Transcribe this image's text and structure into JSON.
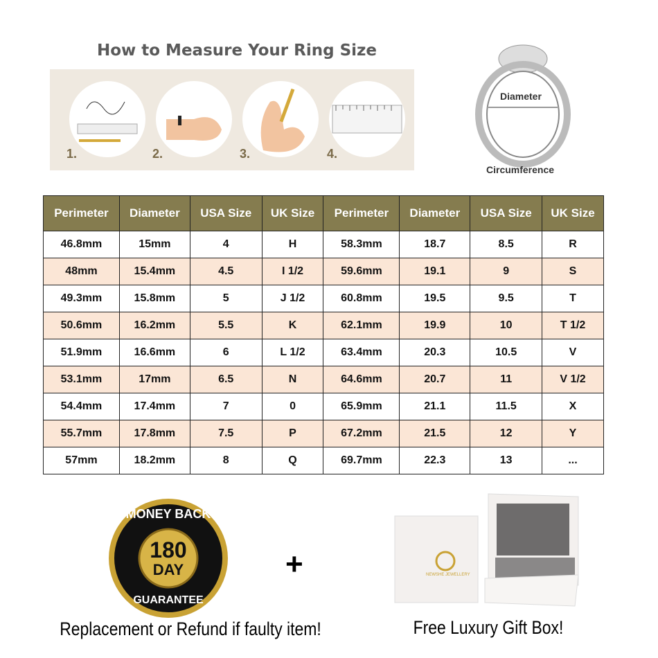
{
  "measure": {
    "title": "How to Measure Your Ring Size",
    "steps": [
      "1.",
      "2.",
      "3.",
      "4."
    ]
  },
  "ring": {
    "diameter_label": "Diameter",
    "circumference_label": "Circumference"
  },
  "table": {
    "headers": [
      "Perimeter",
      "Diameter",
      "USA Size",
      "UK Size",
      "Perimeter",
      "Diameter",
      "USA Size",
      "UK Size"
    ],
    "rows": [
      [
        "46.8mm",
        "15mm",
        "4",
        "H",
        "58.3mm",
        "18.7",
        "8.5",
        "R"
      ],
      [
        "48mm",
        "15.4mm",
        "4.5",
        "I 1/2",
        "59.6mm",
        "19.1",
        "9",
        "S"
      ],
      [
        "49.3mm",
        "15.8mm",
        "5",
        "J 1/2",
        "60.8mm",
        "19.5",
        "9.5",
        "T"
      ],
      [
        "50.6mm",
        "16.2mm",
        "5.5",
        "K",
        "62.1mm",
        "19.9",
        "10",
        "T 1/2"
      ],
      [
        "51.9mm",
        "16.6mm",
        "6",
        "L 1/2",
        "63.4mm",
        "20.3",
        "10.5",
        "V"
      ],
      [
        "53.1mm",
        "17mm",
        "6.5",
        "N",
        "64.6mm",
        "20.7",
        "11",
        "V 1/2"
      ],
      [
        "54.4mm",
        "17.4mm",
        "7",
        "0",
        "65.9mm",
        "21.1",
        "11.5",
        "X"
      ],
      [
        "55.7mm",
        "17.8mm",
        "7.5",
        "P",
        "67.2mm",
        "21.5",
        "12",
        "Y"
      ],
      [
        "57mm",
        "18.2mm",
        "8",
        "Q",
        "69.7mm",
        "22.3",
        "13",
        "..."
      ]
    ]
  },
  "badge": {
    "top_text": "MONEY BACK",
    "number": "180",
    "unit": "DAY",
    "bottom_text": "GUARANTEE"
  },
  "plus": "+",
  "giftbox": {
    "brand": "NEWSHE JEWELLERY"
  },
  "captions": {
    "left": "Replacement or Refund if faulty item!",
    "right": "Free Luxury Gift Box!"
  },
  "colors": {
    "header": "#857c4f",
    "alt_row": "#fbe6d6",
    "panel": "#efe9e0"
  }
}
